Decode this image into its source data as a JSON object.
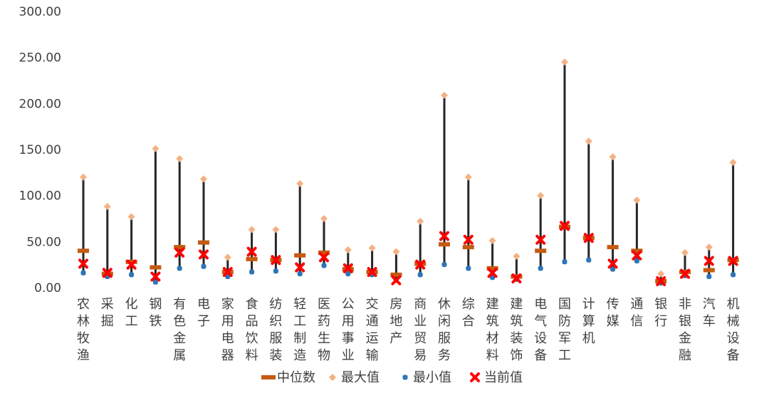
{
  "chart_data": {
    "type": "scatter",
    "ylim": [
      0,
      300
    ],
    "yticks": [
      "0.00",
      "50.00",
      "100.00",
      "150.00",
      "200.00",
      "250.00",
      "300.00"
    ],
    "grid": false,
    "legend_position": "bottom",
    "categories": [
      "农林牧渔",
      "采掘",
      "化工",
      "钢铁",
      "有色金属",
      "电子",
      "家用电器",
      "食品饮料",
      "纺织服装",
      "轻工制造",
      "医药生物",
      "公用事业",
      "交通运输",
      "房地产",
      "商业贸易",
      "休闲服务",
      "综合",
      "建筑材料",
      "建筑装饰",
      "电气设备",
      "国防军工",
      "计算机",
      "传媒",
      "通信",
      "银行",
      "非银金融",
      "汽车",
      "机械设备"
    ],
    "series": [
      {
        "name": "中位数",
        "marker": "dash",
        "color": "#C55A11",
        "values": [
          40,
          15,
          28,
          22,
          44,
          49,
          17,
          31,
          30,
          35,
          38,
          20,
          17,
          14,
          26,
          47,
          44,
          21,
          12,
          40,
          66,
          54,
          44,
          40,
          7,
          17,
          19,
          30
        ]
      },
      {
        "name": "最大值",
        "marker": "diamond",
        "color": "#F4B183",
        "values": [
          120,
          88,
          77,
          151,
          140,
          118,
          33,
          63,
          63,
          113,
          75,
          41,
          43,
          39,
          72,
          209,
          120,
          51,
          34,
          100,
          245,
          159,
          142,
          95,
          15,
          38,
          44,
          136
        ]
      },
      {
        "name": "最小值",
        "marker": "circle",
        "color": "#2E75B6",
        "values": [
          16,
          12,
          14,
          6,
          21,
          23,
          12,
          17,
          18,
          15,
          24,
          15,
          14,
          8,
          14,
          25,
          21,
          11,
          9,
          21,
          28,
          30,
          20,
          29,
          5,
          13,
          12,
          14
        ]
      },
      {
        "name": "当前值",
        "marker": "x",
        "color": "#FF0000",
        "values": [
          26,
          16,
          25,
          12,
          38,
          36,
          17,
          39,
          30,
          22,
          33,
          21,
          17,
          8,
          25,
          56,
          52,
          16,
          10,
          52,
          67,
          54,
          26,
          35,
          7,
          15,
          29,
          29
        ]
      }
    ]
  }
}
